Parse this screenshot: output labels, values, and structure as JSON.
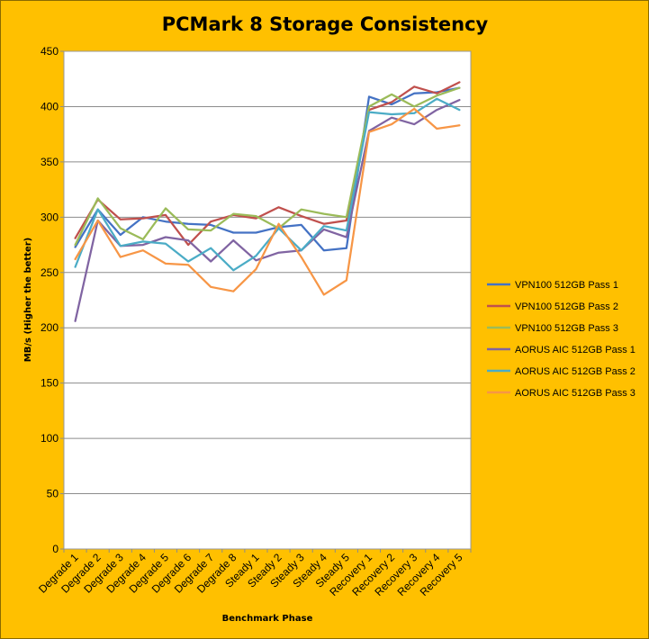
{
  "chart_data": {
    "type": "line",
    "title": "PCMark 8 Storage Consistency",
    "xlabel": "Benchmark Phase",
    "ylabel": "MB/s (Higher the better)",
    "ylim": [
      0,
      450
    ],
    "yticks": [
      0,
      50,
      100,
      150,
      200,
      250,
      300,
      350,
      400,
      450
    ],
    "grid": true,
    "legend_position": "right",
    "categories": [
      "Degrade 1",
      "Degrade 2",
      "Degrade 3",
      "Degrade 4",
      "Degrade 5",
      "Degrade 6",
      "Degrade 7",
      "Degrade 8",
      "Steady 1",
      "Steady 2",
      "Steady 3",
      "Steady 4",
      "Steady 5",
      "Recovery 1",
      "Recovery 2",
      "Recovery 3",
      "Recovery 4",
      "Recovery 5"
    ],
    "series": [
      {
        "name": "VPN100 512GB Pass 1",
        "color": "#4472C4",
        "values": [
          273,
          307,
          284,
          300,
          296,
          294,
          293,
          286,
          286,
          291,
          293,
          270,
          272,
          409,
          402,
          412,
          413,
          417
        ]
      },
      {
        "name": "VPN100 512GB Pass 2",
        "color": "#C0504D",
        "values": [
          281,
          316,
          298,
          299,
          302,
          275,
          296,
          302,
          299,
          309,
          301,
          294,
          297,
          397,
          404,
          418,
          412,
          422
        ]
      },
      {
        "name": "VPN100 512GB Pass 3",
        "color": "#9BBB59",
        "values": [
          275,
          317,
          290,
          280,
          308,
          289,
          288,
          303,
          301,
          290,
          307,
          303,
          300,
          400,
          411,
          400,
          410,
          417
        ]
      },
      {
        "name": "AORUS AIC 512GB Pass 1",
        "color": "#8064A2",
        "values": [
          206,
          297,
          274,
          275,
          282,
          279,
          260,
          279,
          261,
          268,
          270,
          289,
          282,
          378,
          390,
          384,
          397,
          406
        ]
      },
      {
        "name": "AORUS AIC 512GB Pass 2",
        "color": "#4BACC6",
        "values": [
          255,
          307,
          274,
          278,
          276,
          260,
          272,
          252,
          265,
          290,
          270,
          292,
          288,
          395,
          393,
          394,
          407,
          397
        ]
      },
      {
        "name": "AORUS AIC 512GB Pass 3",
        "color": "#F79646",
        "values": [
          262,
          297,
          264,
          270,
          258,
          257,
          237,
          233,
          253,
          294,
          264,
          230,
          243,
          377,
          384,
          398,
          380,
          383
        ]
      }
    ]
  }
}
